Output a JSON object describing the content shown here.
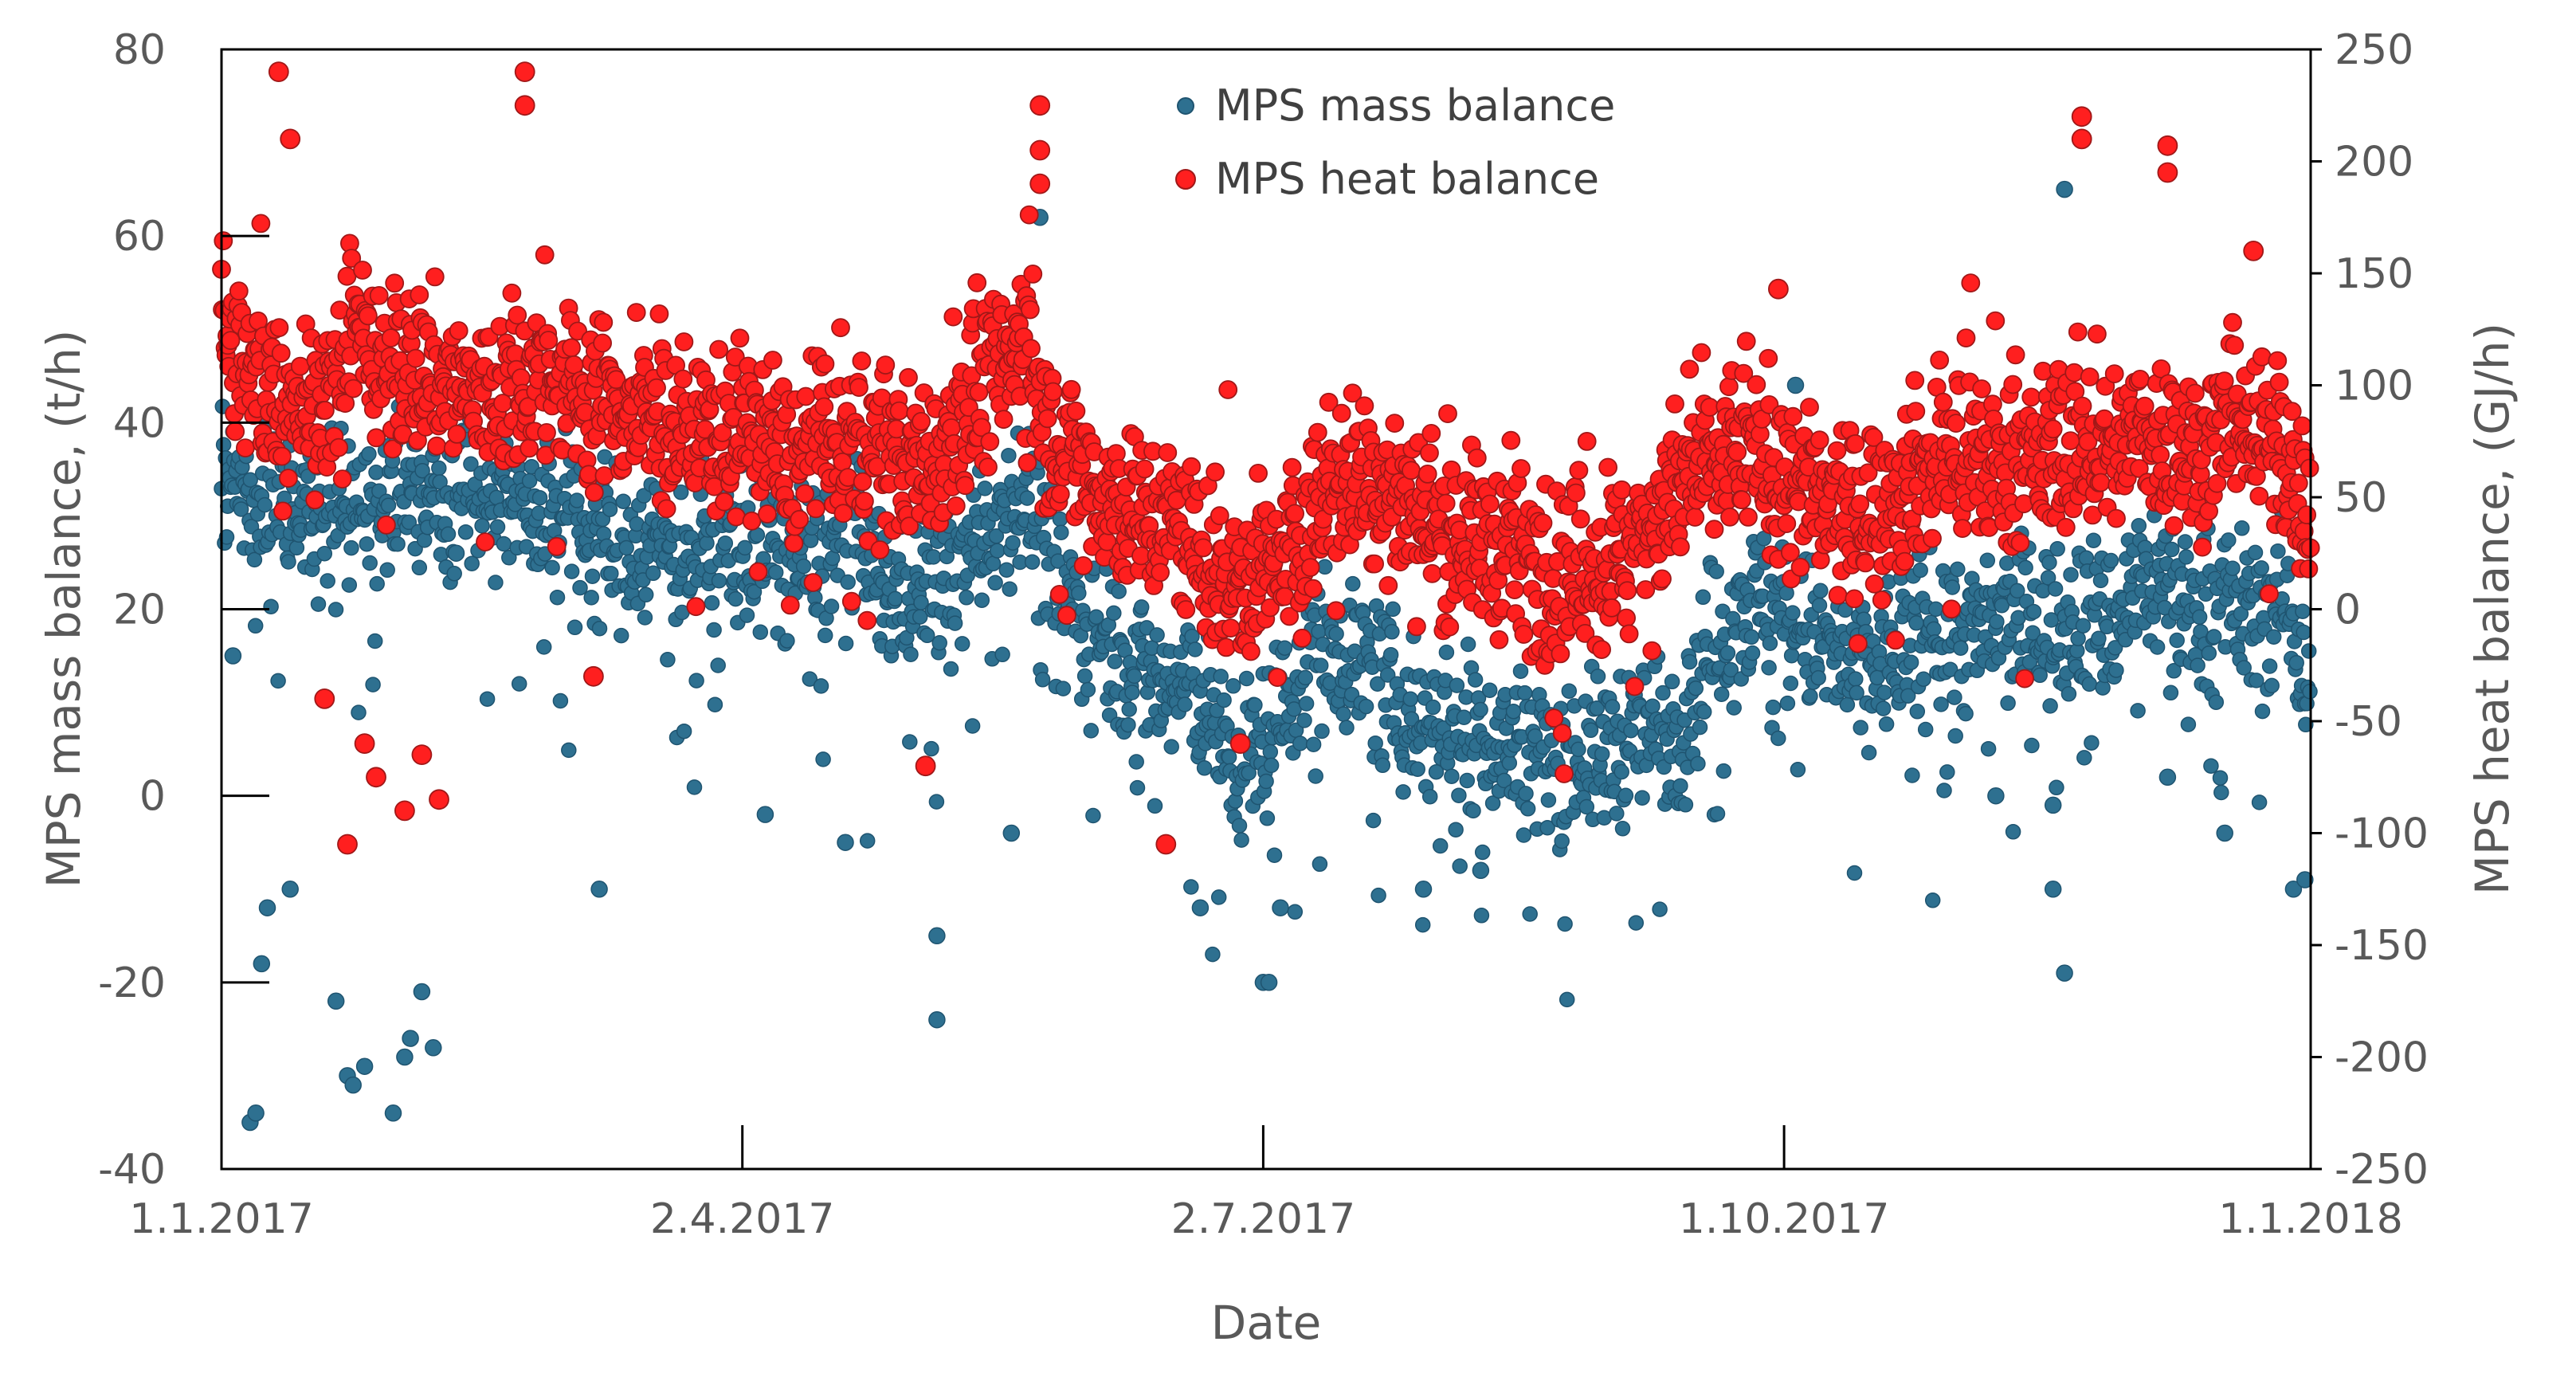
{
  "chart_data": {
    "type": "scatter",
    "title": "",
    "xlabel": "Date",
    "ylabel": "MPS mass balance, (t/h)",
    "y2label": "MPS heat balance, (GJ/h)",
    "x_range_days": [
      0,
      365
    ],
    "x_ticks": [
      {
        "day": 0,
        "label": "1.1.2017"
      },
      {
        "day": 91,
        "label": "2.4.2017"
      },
      {
        "day": 182,
        "label": "2.7.2017"
      },
      {
        "day": 273,
        "label": "1.10.2017"
      },
      {
        "day": 365,
        "label": "1.1.2018"
      }
    ],
    "ylim": [
      -40,
      80
    ],
    "y_ticks": [
      "-40",
      "-20",
      "0",
      "20",
      "40",
      "60",
      "80"
    ],
    "y2lim": [
      -250,
      250
    ],
    "y2_ticks": [
      "-250",
      "-200",
      "-150",
      "-100",
      "-50",
      "0",
      "50",
      "100",
      "150",
      "200",
      "250"
    ],
    "legend_position": "top-center",
    "series": [
      {
        "name": "MPS mass balance",
        "axis": "left",
        "color": "#2e7090",
        "edge_color": "#1f5470",
        "trend_t_h": [
          [
            0,
            34
          ],
          [
            5,
            33
          ],
          [
            10,
            30
          ],
          [
            15,
            33
          ],
          [
            20,
            30
          ],
          [
            25,
            31
          ],
          [
            30,
            34
          ],
          [
            35,
            33
          ],
          [
            40,
            33
          ],
          [
            45,
            32
          ],
          [
            50,
            32
          ],
          [
            55,
            31
          ],
          [
            60,
            30
          ],
          [
            65,
            28
          ],
          [
            70,
            27
          ],
          [
            80,
            27
          ],
          [
            90,
            27
          ],
          [
            100,
            26
          ],
          [
            105,
            25
          ],
          [
            110,
            30
          ],
          [
            115,
            22
          ],
          [
            120,
            22
          ],
          [
            125,
            23
          ],
          [
            130,
            25
          ],
          [
            135,
            30
          ],
          [
            140,
            33
          ],
          [
            145,
            25
          ],
          [
            150,
            19
          ],
          [
            155,
            17
          ],
          [
            160,
            14
          ],
          [
            165,
            11
          ],
          [
            170,
            12
          ],
          [
            175,
            5
          ],
          [
            180,
            4
          ],
          [
            185,
            9
          ],
          [
            190,
            15
          ],
          [
            195,
            16
          ],
          [
            200,
            14
          ],
          [
            205,
            10
          ],
          [
            210,
            8
          ],
          [
            215,
            8
          ],
          [
            220,
            7
          ],
          [
            225,
            5
          ],
          [
            230,
            5
          ],
          [
            235,
            5
          ],
          [
            240,
            4
          ],
          [
            245,
            6
          ],
          [
            250,
            7
          ],
          [
            255,
            8
          ],
          [
            260,
            16
          ],
          [
            265,
            20
          ],
          [
            270,
            21
          ],
          [
            275,
            18
          ],
          [
            280,
            16
          ],
          [
            285,
            13
          ],
          [
            290,
            14
          ],
          [
            295,
            17
          ],
          [
            300,
            19
          ],
          [
            305,
            17
          ],
          [
            310,
            18
          ],
          [
            315,
            19
          ],
          [
            320,
            18
          ],
          [
            325,
            20
          ],
          [
            330,
            18
          ],
          [
            335,
            23
          ],
          [
            340,
            23
          ],
          [
            345,
            20
          ],
          [
            350,
            21
          ],
          [
            355,
            19
          ],
          [
            360,
            21
          ],
          [
            365,
            13
          ]
        ],
        "outliers_t_h": [
          [
            2,
            15
          ],
          [
            5,
            -35
          ],
          [
            6,
            -34
          ],
          [
            7,
            -18
          ],
          [
            8,
            -12
          ],
          [
            12,
            -10
          ],
          [
            20,
            -22
          ],
          [
            22,
            -30
          ],
          [
            23,
            -31
          ],
          [
            25,
            -29
          ],
          [
            30,
            -34
          ],
          [
            32,
            -28
          ],
          [
            33,
            -26
          ],
          [
            35,
            -21
          ],
          [
            37,
            -27
          ],
          [
            41,
            26
          ],
          [
            66,
            -10
          ],
          [
            95,
            -2
          ],
          [
            109,
            -5
          ],
          [
            125,
            -15
          ],
          [
            125,
            -24
          ],
          [
            138,
            -4
          ],
          [
            143,
            62
          ],
          [
            171,
            -12
          ],
          [
            182,
            -20
          ],
          [
            183,
            -20
          ],
          [
            185,
            -12
          ],
          [
            210,
            -10
          ],
          [
            220,
            -8
          ],
          [
            275,
            44
          ],
          [
            310,
            0
          ],
          [
            320,
            -1
          ],
          [
            320,
            -10
          ],
          [
            322,
            65
          ],
          [
            322,
            -19
          ],
          [
            340,
            2
          ],
          [
            350,
            -4
          ],
          [
            362,
            -10
          ],
          [
            364,
            -9
          ]
        ]
      },
      {
        "name": "MPS heat balance",
        "axis": "right",
        "color": "#ff1f1f",
        "edge_color": "#a01818",
        "trend_gj_h": [
          [
            0,
            130
          ],
          [
            3,
            110
          ],
          [
            6,
            100
          ],
          [
            9,
            95
          ],
          [
            12,
            100
          ],
          [
            15,
            90
          ],
          [
            18,
            95
          ],
          [
            21,
            100
          ],
          [
            24,
            130
          ],
          [
            27,
            100
          ],
          [
            30,
            105
          ],
          [
            33,
            110
          ],
          [
            36,
            105
          ],
          [
            40,
            100
          ],
          [
            45,
            95
          ],
          [
            50,
            100
          ],
          [
            55,
            105
          ],
          [
            60,
            100
          ],
          [
            65,
            95
          ],
          [
            70,
            90
          ],
          [
            75,
            85
          ],
          [
            80,
            80
          ],
          [
            85,
            80
          ],
          [
            90,
            80
          ],
          [
            95,
            75
          ],
          [
            100,
            65
          ],
          [
            105,
            75
          ],
          [
            110,
            70
          ],
          [
            115,
            70
          ],
          [
            120,
            65
          ],
          [
            125,
            70
          ],
          [
            130,
            90
          ],
          [
            135,
            105
          ],
          [
            140,
            120
          ],
          [
            145,
            80
          ],
          [
            150,
            65
          ],
          [
            155,
            50
          ],
          [
            160,
            40
          ],
          [
            165,
            40
          ],
          [
            170,
            30
          ],
          [
            175,
            10
          ],
          [
            180,
            15
          ],
          [
            185,
            20
          ],
          [
            190,
            40
          ],
          [
            195,
            55
          ],
          [
            200,
            60
          ],
          [
            205,
            50
          ],
          [
            210,
            40
          ],
          [
            215,
            35
          ],
          [
            220,
            30
          ],
          [
            225,
            25
          ],
          [
            230,
            20
          ],
          [
            235,
            15
          ],
          [
            240,
            20
          ],
          [
            245,
            25
          ],
          [
            250,
            40
          ],
          [
            255,
            55
          ],
          [
            260,
            60
          ],
          [
            265,
            75
          ],
          [
            270,
            65
          ],
          [
            275,
            55
          ],
          [
            280,
            45
          ],
          [
            285,
            40
          ],
          [
            290,
            50
          ],
          [
            295,
            60
          ],
          [
            300,
            65
          ],
          [
            305,
            70
          ],
          [
            310,
            65
          ],
          [
            315,
            65
          ],
          [
            320,
            70
          ],
          [
            325,
            75
          ],
          [
            330,
            70
          ],
          [
            335,
            80
          ],
          [
            340,
            75
          ],
          [
            345,
            70
          ],
          [
            350,
            80
          ],
          [
            355,
            75
          ],
          [
            360,
            70
          ],
          [
            365,
            40
          ]
        ],
        "outliers_gj_h": [
          [
            10,
            240
          ],
          [
            12,
            210
          ],
          [
            18,
            -40
          ],
          [
            22,
            -105
          ],
          [
            25,
            -60
          ],
          [
            27,
            -75
          ],
          [
            32,
            -90
          ],
          [
            35,
            -65
          ],
          [
            38,
            -85
          ],
          [
            53,
            240
          ],
          [
            53,
            225
          ],
          [
            65,
            -30
          ],
          [
            123,
            -70
          ],
          [
            143,
            225
          ],
          [
            143,
            205
          ],
          [
            143,
            190
          ],
          [
            165,
            -105
          ],
          [
            178,
            -60
          ],
          [
            272,
            143
          ],
          [
            325,
            220
          ],
          [
            325,
            210
          ],
          [
            340,
            207
          ],
          [
            340,
            195
          ],
          [
            355,
            160
          ]
        ]
      }
    ]
  }
}
